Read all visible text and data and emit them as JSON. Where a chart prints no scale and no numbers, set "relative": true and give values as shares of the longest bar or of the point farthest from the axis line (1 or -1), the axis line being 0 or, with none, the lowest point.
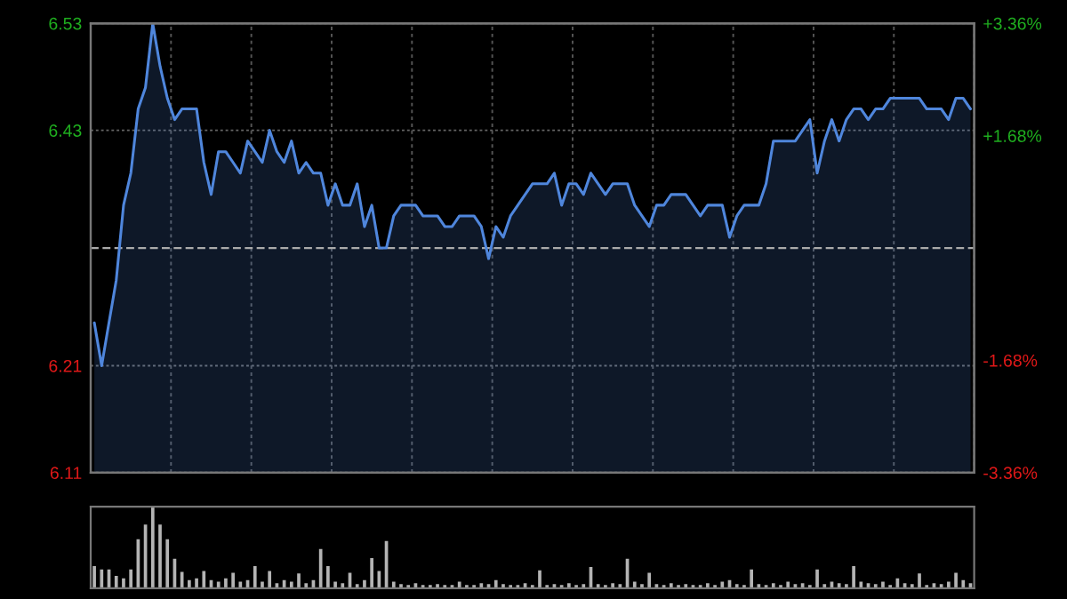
{
  "chart_data": [
    {
      "type": "area",
      "categories": [
        null,
        null,
        null,
        null,
        null,
        null,
        null,
        null,
        null,
        null,
        null,
        null,
        null,
        null,
        null,
        null,
        null,
        null,
        null,
        null,
        null,
        null,
        null,
        null,
        null,
        null,
        null,
        null,
        null,
        null,
        null,
        null,
        null,
        null,
        null,
        null,
        null,
        null,
        null,
        null,
        null,
        null,
        null,
        null,
        null,
        null,
        null,
        null,
        null,
        null,
        null,
        null,
        null,
        null,
        null,
        null,
        null,
        null,
        null,
        null,
        null,
        null,
        null,
        null,
        null,
        null,
        null,
        null,
        null,
        null,
        null,
        null,
        null,
        null,
        null,
        null,
        null,
        null,
        null,
        null,
        null,
        null,
        null,
        null,
        null,
        null,
        null,
        null,
        null,
        null,
        null,
        null,
        null,
        null,
        null,
        null,
        null,
        null,
        null,
        null,
        null,
        null,
        null,
        null,
        null,
        null,
        null,
        null,
        null,
        null,
        null,
        null,
        null,
        null,
        null,
        null,
        null,
        null,
        null,
        null,
        null
      ],
      "series": [
        {
          "color": "#4f86dc",
          "values": [
            6.25,
            6.21,
            6.25,
            6.29,
            6.36,
            6.39,
            6.45,
            6.47,
            6.53,
            6.49,
            6.46,
            6.44,
            6.45,
            6.45,
            6.45,
            6.4,
            6.37,
            6.41,
            6.41,
            6.4,
            6.39,
            6.42,
            6.41,
            6.4,
            6.43,
            6.41,
            6.4,
            6.42,
            6.39,
            6.4,
            6.39,
            6.39,
            6.36,
            6.38,
            6.36,
            6.36,
            6.38,
            6.34,
            6.36,
            6.32,
            6.32,
            6.35,
            6.36,
            6.36,
            6.36,
            6.35,
            6.35,
            6.35,
            6.34,
            6.34,
            6.35,
            6.35,
            6.35,
            6.34,
            6.31,
            6.34,
            6.33,
            6.35,
            6.36,
            6.37,
            6.38,
            6.38,
            6.38,
            6.39,
            6.36,
            6.38,
            6.38,
            6.37,
            6.39,
            6.38,
            6.37,
            6.38,
            6.38,
            6.38,
            6.36,
            6.35,
            6.34,
            6.36,
            6.36,
            6.37,
            6.37,
            6.37,
            6.36,
            6.35,
            6.36,
            6.36,
            6.36,
            6.33,
            6.35,
            6.36,
            6.36,
            6.36,
            6.38,
            6.42,
            6.42,
            6.42,
            6.42,
            6.43,
            6.44,
            6.39,
            6.42,
            6.44,
            6.42,
            6.44,
            6.45,
            6.45,
            6.44,
            6.45,
            6.45,
            6.46,
            6.46,
            6.46,
            6.46,
            6.46,
            6.45,
            6.45,
            6.45,
            6.44,
            6.46,
            6.46,
            6.45
          ]
        }
      ],
      "ylim": [
        6.11,
        6.53
      ],
      "yticks": [
        6.11,
        6.21,
        6.43,
        6.53
      ],
      "y2lim": [
        -3.36,
        3.36
      ],
      "y2ticks": [
        {
          "value": -3.36,
          "label": "-3.36%"
        },
        {
          "value": -1.68,
          "label": "-1.68%"
        },
        {
          "value": 1.68,
          "label": "+1.68%"
        },
        {
          "value": 3.36,
          "label": "+3.36%"
        }
      ],
      "ref_lines": [
        {
          "axis": "y",
          "value": 6.32,
          "color": "#aaaaaa",
          "line_style": "dashed"
        }
      ],
      "grid": true,
      "line_style": "solid"
    },
    {
      "type": "bar",
      "relative": true,
      "categories": [
        null,
        null,
        null,
        null,
        null,
        null,
        null,
        null,
        null,
        null,
        null,
        null,
        null,
        null,
        null,
        null,
        null,
        null,
        null,
        null,
        null,
        null,
        null,
        null,
        null,
        null,
        null,
        null,
        null,
        null,
        null,
        null,
        null,
        null,
        null,
        null,
        null,
        null,
        null,
        null,
        null,
        null,
        null,
        null,
        null,
        null,
        null,
        null,
        null,
        null,
        null,
        null,
        null,
        null,
        null,
        null,
        null,
        null,
        null,
        null,
        null,
        null,
        null,
        null,
        null,
        null,
        null,
        null,
        null,
        null,
        null,
        null,
        null,
        null,
        null,
        null,
        null,
        null,
        null,
        null,
        null,
        null,
        null,
        null,
        null,
        null,
        null,
        null,
        null,
        null,
        null,
        null,
        null,
        null,
        null,
        null,
        null,
        null,
        null,
        null,
        null,
        null,
        null,
        null,
        null,
        null,
        null,
        null,
        null,
        null,
        null,
        null,
        null,
        null,
        null,
        null,
        null,
        null,
        null,
        null,
        null
      ],
      "series": [
        {
          "color": "#b4b4b4",
          "values": [
            0.27,
            0.23,
            0.23,
            0.15,
            0.12,
            0.23,
            0.6,
            0.78,
            1.0,
            0.78,
            0.6,
            0.36,
            0.2,
            0.1,
            0.12,
            0.21,
            0.1,
            0.08,
            0.12,
            0.19,
            0.08,
            0.1,
            0.27,
            0.08,
            0.21,
            0.06,
            0.1,
            0.08,
            0.18,
            0.06,
            0.1,
            0.48,
            0.27,
            0.08,
            0.06,
            0.19,
            0.05,
            0.1,
            0.37,
            0.21,
            0.58,
            0.08,
            0.05,
            0.04,
            0.06,
            0.04,
            0.04,
            0.05,
            0.04,
            0.04,
            0.08,
            0.04,
            0.04,
            0.06,
            0.05,
            0.1,
            0.05,
            0.04,
            0.04,
            0.06,
            0.04,
            0.22,
            0.04,
            0.05,
            0.04,
            0.06,
            0.04,
            0.05,
            0.26,
            0.05,
            0.04,
            0.06,
            0.05,
            0.36,
            0.08,
            0.05,
            0.19,
            0.05,
            0.04,
            0.06,
            0.04,
            0.05,
            0.04,
            0.04,
            0.06,
            0.04,
            0.08,
            0.1,
            0.05,
            0.04,
            0.23,
            0.05,
            0.04,
            0.06,
            0.04,
            0.08,
            0.05,
            0.06,
            0.04,
            0.23,
            0.05,
            0.08,
            0.06,
            0.05,
            0.27,
            0.08,
            0.06,
            0.05,
            0.08,
            0.04,
            0.12,
            0.06,
            0.05,
            0.18,
            0.04,
            0.06,
            0.05,
            0.08,
            0.19,
            0.1,
            0.06
          ]
        }
      ]
    }
  ]
}
